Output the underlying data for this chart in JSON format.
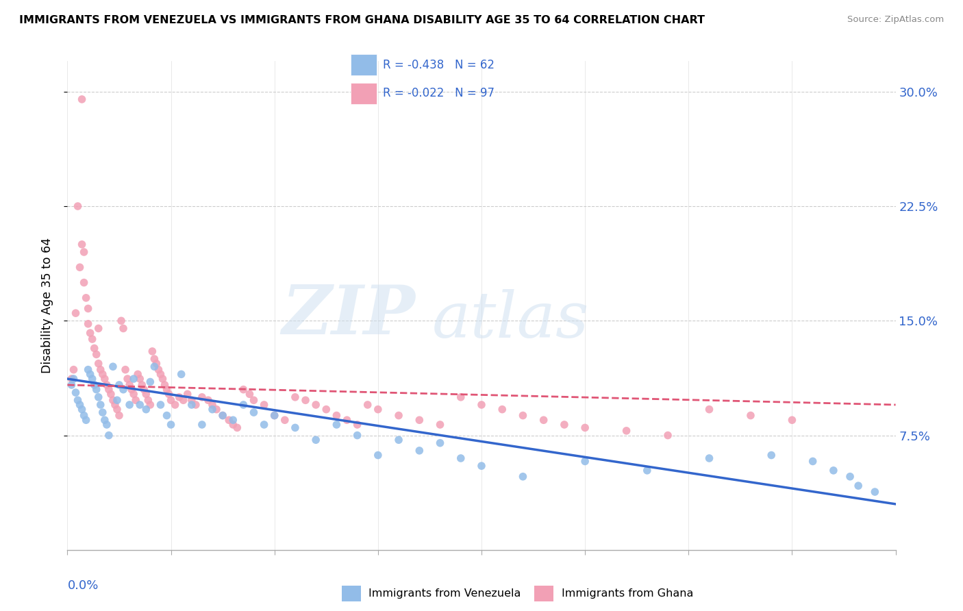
{
  "title": "IMMIGRANTS FROM VENEZUELA VS IMMIGRANTS FROM GHANA DISABILITY AGE 35 TO 64 CORRELATION CHART",
  "source": "Source: ZipAtlas.com",
  "ylabel_label": "Disability Age 35 to 64",
  "ytick_vals": [
    0.075,
    0.15,
    0.225,
    0.3
  ],
  "ytick_labels": [
    "7.5%",
    "15.0%",
    "22.5%",
    "30.0%"
  ],
  "xtick_vals": [
    0.0,
    0.05,
    0.1,
    0.15,
    0.2,
    0.25,
    0.3,
    0.35,
    0.4
  ],
  "xlim": [
    0.0,
    0.4
  ],
  "ylim": [
    0.0,
    0.32
  ],
  "venezuela_color": "#92bce8",
  "ghana_color": "#f2a0b5",
  "venezuela_line_color": "#3366cc",
  "ghana_line_color": "#e05575",
  "R_venezuela": -0.438,
  "N_venezuela": 62,
  "R_ghana": -0.022,
  "N_ghana": 97,
  "venezuela_x": [
    0.002,
    0.003,
    0.004,
    0.005,
    0.006,
    0.007,
    0.008,
    0.009,
    0.01,
    0.011,
    0.012,
    0.013,
    0.014,
    0.015,
    0.016,
    0.017,
    0.018,
    0.019,
    0.02,
    0.022,
    0.024,
    0.025,
    0.027,
    0.03,
    0.032,
    0.035,
    0.038,
    0.04,
    0.042,
    0.045,
    0.048,
    0.05,
    0.055,
    0.06,
    0.065,
    0.07,
    0.075,
    0.08,
    0.085,
    0.09,
    0.095,
    0.1,
    0.11,
    0.12,
    0.13,
    0.14,
    0.15,
    0.16,
    0.17,
    0.18,
    0.19,
    0.2,
    0.22,
    0.25,
    0.28,
    0.31,
    0.34,
    0.36,
    0.37,
    0.378,
    0.382,
    0.39
  ],
  "venezuela_y": [
    0.108,
    0.112,
    0.103,
    0.098,
    0.095,
    0.092,
    0.088,
    0.085,
    0.118,
    0.115,
    0.112,
    0.108,
    0.105,
    0.1,
    0.095,
    0.09,
    0.085,
    0.082,
    0.075,
    0.12,
    0.098,
    0.108,
    0.105,
    0.095,
    0.112,
    0.095,
    0.092,
    0.11,
    0.12,
    0.095,
    0.088,
    0.082,
    0.115,
    0.095,
    0.082,
    0.092,
    0.088,
    0.085,
    0.095,
    0.09,
    0.082,
    0.088,
    0.08,
    0.072,
    0.082,
    0.075,
    0.062,
    0.072,
    0.065,
    0.07,
    0.06,
    0.055,
    0.048,
    0.058,
    0.052,
    0.06,
    0.062,
    0.058,
    0.052,
    0.048,
    0.042,
    0.038
  ],
  "ghana_x": [
    0.002,
    0.003,
    0.004,
    0.005,
    0.006,
    0.007,
    0.007,
    0.008,
    0.008,
    0.009,
    0.01,
    0.01,
    0.011,
    0.012,
    0.013,
    0.014,
    0.015,
    0.015,
    0.016,
    0.017,
    0.018,
    0.019,
    0.02,
    0.021,
    0.022,
    0.023,
    0.024,
    0.025,
    0.026,
    0.027,
    0.028,
    0.029,
    0.03,
    0.031,
    0.032,
    0.033,
    0.034,
    0.035,
    0.036,
    0.037,
    0.038,
    0.039,
    0.04,
    0.041,
    0.042,
    0.043,
    0.044,
    0.045,
    0.046,
    0.047,
    0.048,
    0.049,
    0.05,
    0.052,
    0.054,
    0.056,
    0.058,
    0.06,
    0.062,
    0.065,
    0.068,
    0.07,
    0.072,
    0.075,
    0.078,
    0.08,
    0.082,
    0.085,
    0.088,
    0.09,
    0.095,
    0.1,
    0.105,
    0.11,
    0.115,
    0.12,
    0.125,
    0.13,
    0.135,
    0.14,
    0.145,
    0.15,
    0.16,
    0.17,
    0.18,
    0.19,
    0.2,
    0.21,
    0.22,
    0.23,
    0.24,
    0.25,
    0.27,
    0.29,
    0.31,
    0.33,
    0.35
  ],
  "ghana_y": [
    0.112,
    0.118,
    0.155,
    0.225,
    0.185,
    0.2,
    0.295,
    0.195,
    0.175,
    0.165,
    0.158,
    0.148,
    0.142,
    0.138,
    0.132,
    0.128,
    0.122,
    0.145,
    0.118,
    0.115,
    0.112,
    0.108,
    0.105,
    0.102,
    0.098,
    0.095,
    0.092,
    0.088,
    0.15,
    0.145,
    0.118,
    0.112,
    0.108,
    0.105,
    0.102,
    0.098,
    0.115,
    0.112,
    0.108,
    0.105,
    0.102,
    0.098,
    0.095,
    0.13,
    0.125,
    0.122,
    0.118,
    0.115,
    0.112,
    0.108,
    0.105,
    0.102,
    0.098,
    0.095,
    0.1,
    0.098,
    0.102,
    0.098,
    0.095,
    0.1,
    0.098,
    0.095,
    0.092,
    0.088,
    0.085,
    0.082,
    0.08,
    0.105,
    0.102,
    0.098,
    0.095,
    0.088,
    0.085,
    0.1,
    0.098,
    0.095,
    0.092,
    0.088,
    0.085,
    0.082,
    0.095,
    0.092,
    0.088,
    0.085,
    0.082,
    0.1,
    0.095,
    0.092,
    0.088,
    0.085,
    0.082,
    0.08,
    0.078,
    0.075,
    0.092,
    0.088,
    0.085
  ]
}
